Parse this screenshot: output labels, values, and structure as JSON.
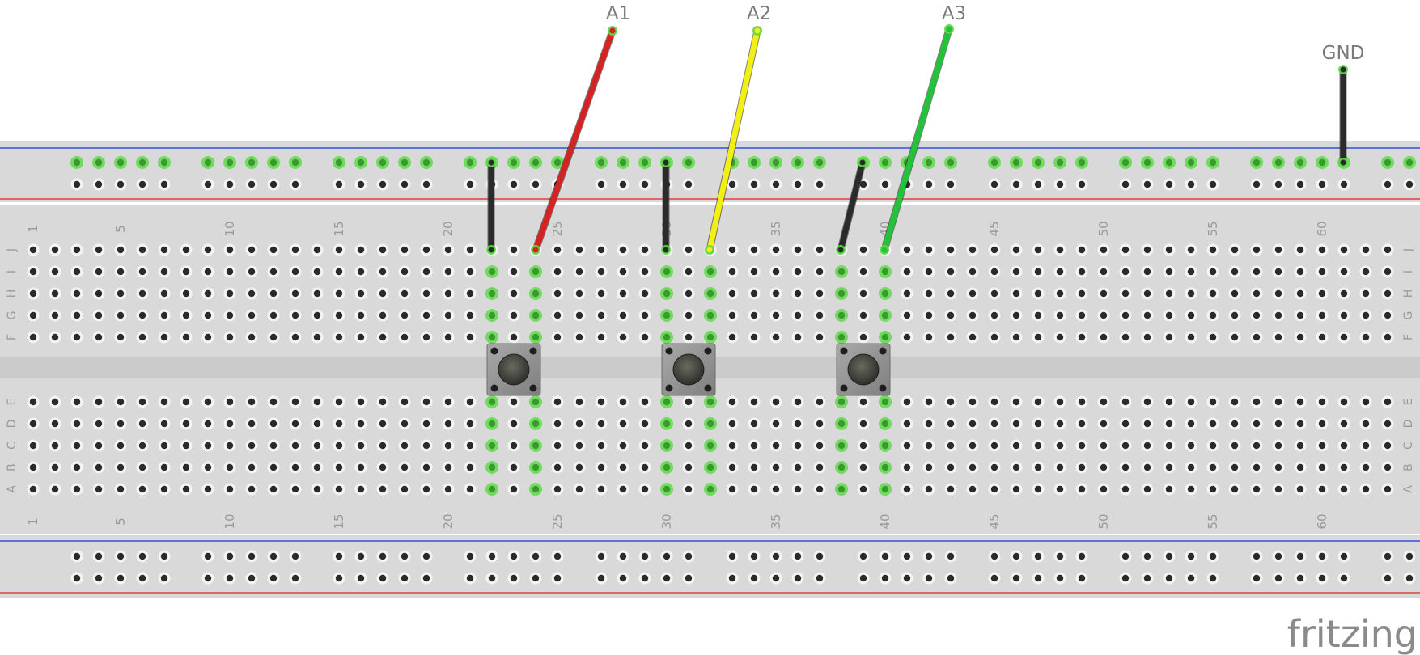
{
  "title": "",
  "breadboard": {
    "columns": 63,
    "rows_top": [
      "J",
      "I",
      "H",
      "G",
      "F"
    ],
    "rows_bottom": [
      "E",
      "D",
      "C",
      "B",
      "A"
    ],
    "column_labels": [
      "1",
      "5",
      "10",
      "15",
      "20",
      "25",
      "30",
      "35",
      "40",
      "45",
      "50",
      "55",
      "60"
    ],
    "active_columns": [
      22,
      24,
      30,
      32,
      38,
      40
    ],
    "rail_groups": 12,
    "rail_color_negative": "#3b4bdc",
    "rail_color_positive": "#e0413c"
  },
  "pins": {
    "a1": "A1",
    "a2": "A2",
    "a3": "A3",
    "gnd": "GND"
  },
  "wires": [
    {
      "id": "gnd-jumper-1",
      "color": "#2b2b2b",
      "from": "top-rail",
      "to": "J22"
    },
    {
      "id": "a1-wire",
      "color": "#d42323",
      "label": "A1",
      "to": "J24"
    },
    {
      "id": "gnd-jumper-2",
      "color": "#2b2b2b",
      "from": "top-rail",
      "to": "J30"
    },
    {
      "id": "a2-wire",
      "color": "#f2ef14",
      "label": "A2",
      "to": "J32"
    },
    {
      "id": "gnd-jumper-3",
      "color": "#2b2b2b",
      "from": "top-rail",
      "to": "J38"
    },
    {
      "id": "a3-wire",
      "color": "#22c23a",
      "label": "A3",
      "to": "J40"
    },
    {
      "id": "gnd-wire",
      "color": "#2b2b2b",
      "label": "GND",
      "to": "top-rail"
    }
  ],
  "buttons": [
    {
      "name": "pushbutton-1",
      "columns": [
        22,
        24
      ]
    },
    {
      "name": "pushbutton-2",
      "columns": [
        30,
        32
      ]
    },
    {
      "name": "pushbutton-3",
      "columns": [
        38,
        40
      ]
    }
  ],
  "brand": "fritzing",
  "colors": {
    "board": "#d9d9d9",
    "channel": "#cbcbcb",
    "active_hole": "#5fd94a"
  }
}
